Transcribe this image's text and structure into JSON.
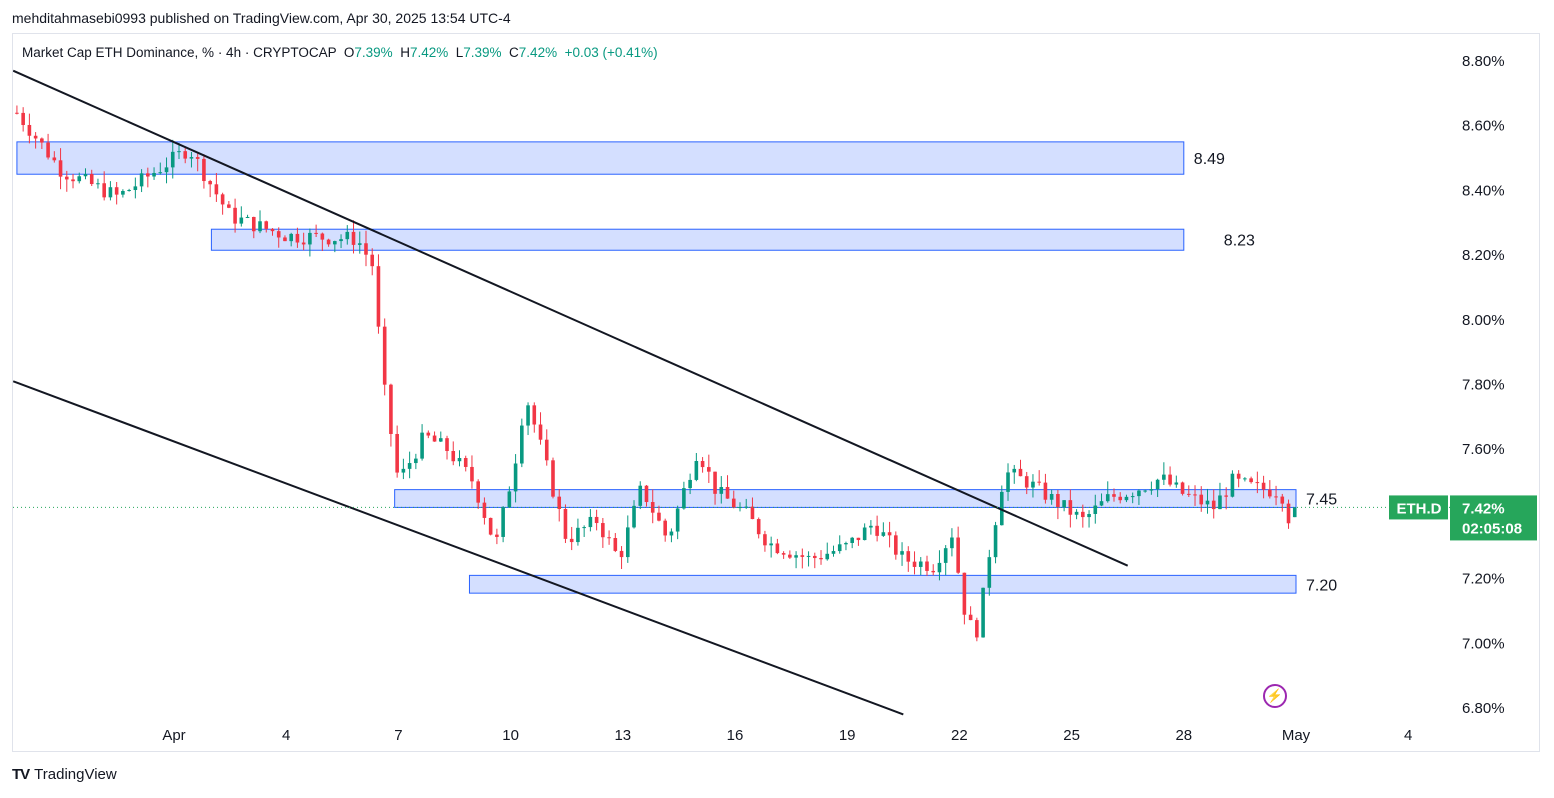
{
  "header": {
    "publisher_line": "mehditahmasebi0993 published on TradingView.com, Apr 30, 2025 13:54 UTC-4"
  },
  "legend": {
    "symbol_text": "Market Cap ETH Dominance, % · 4h · CRYPTOCAP",
    "o_label": "O",
    "o_value": "7.39%",
    "h_label": "H",
    "h_value": "7.42%",
    "l_label": "L",
    "l_value": "7.39%",
    "c_label": "C",
    "c_value": "7.42%",
    "change": "+0.03 (+0.41%)"
  },
  "footer": {
    "brand": "TradingView",
    "logo_text": "TV"
  },
  "colors": {
    "up": "#089981",
    "down": "#f23645",
    "zone_fill": "#cdd9ff",
    "zone_border": "#2962ff",
    "line": "#131722",
    "price_tag": "#26a65b"
  },
  "chart_data": {
    "type": "candlestick",
    "y_axis": {
      "min": 6.76,
      "max": 8.86,
      "ticks": [
        "8.80%",
        "8.60%",
        "8.40%",
        "8.20%",
        "8.00%",
        "7.80%",
        "7.60%",
        "7.40%",
        "7.20%",
        "7.00%",
        "6.80%"
      ],
      "tick_values": [
        8.8,
        8.6,
        8.4,
        8.2,
        8.0,
        7.8,
        7.6,
        7.4,
        7.2,
        7.0,
        6.8
      ]
    },
    "x_axis": {
      "labels": [
        "Apr",
        "4",
        "7",
        "10",
        "13",
        "16",
        "19",
        "22",
        "25",
        "28",
        "May",
        "4"
      ],
      "label_days": [
        0,
        3,
        6,
        9,
        12,
        15,
        18,
        21,
        24,
        27,
        30,
        33
      ]
    },
    "last_price_tag": {
      "symbol": "ETH.D",
      "price": "7.42%",
      "countdown": "02:05:08",
      "value": 7.42
    },
    "zones": [
      {
        "label": "8.49",
        "top": 8.55,
        "bottom": 8.45,
        "start_day": -4.2,
        "end_day": 27.0
      },
      {
        "label": "8.23",
        "top": 8.28,
        "bottom": 8.215,
        "start_day": 1.0,
        "end_day": 27.0
      },
      {
        "label": "7.45",
        "top": 7.475,
        "bottom": 7.42,
        "start_day": 5.9,
        "end_day": 30.0
      },
      {
        "label": "7.20",
        "top": 7.21,
        "bottom": 7.155,
        "start_day": 7.9,
        "end_day": 30.0
      }
    ],
    "trendlines": [
      {
        "from": {
          "day": -4.3,
          "value": 8.77
        },
        "to": {
          "day": 25.5,
          "value": 7.24
        }
      },
      {
        "from": {
          "day": -4.3,
          "value": 7.81
        },
        "to": {
          "day": 19.5,
          "value": 6.78
        }
      }
    ],
    "key_closes": [
      {
        "day": -4.2,
        "value": 8.64
      },
      {
        "day": -3.0,
        "value": 8.46
      },
      {
        "day": -1.5,
        "value": 8.38
      },
      {
        "day": 0.4,
        "value": 8.53
      },
      {
        "day": 1.5,
        "value": 8.32
      },
      {
        "day": 3.0,
        "value": 8.26
      },
      {
        "day": 4.9,
        "value": 8.25
      },
      {
        "day": 5.3,
        "value": 8.17
      },
      {
        "day": 5.6,
        "value": 7.8
      },
      {
        "day": 6.0,
        "value": 7.5
      },
      {
        "day": 6.7,
        "value": 7.64
      },
      {
        "day": 7.3,
        "value": 7.6
      },
      {
        "day": 8.0,
        "value": 7.5
      },
      {
        "day": 8.6,
        "value": 7.3
      },
      {
        "day": 9.1,
        "value": 7.55
      },
      {
        "day": 9.4,
        "value": 7.77
      },
      {
        "day": 10.0,
        "value": 7.53
      },
      {
        "day": 10.5,
        "value": 7.32
      },
      {
        "day": 11.3,
        "value": 7.38
      },
      {
        "day": 11.9,
        "value": 7.26
      },
      {
        "day": 12.5,
        "value": 7.48
      },
      {
        "day": 13.2,
        "value": 7.32
      },
      {
        "day": 14.0,
        "value": 7.6
      },
      {
        "day": 14.5,
        "value": 7.47
      },
      {
        "day": 15.3,
        "value": 7.4
      },
      {
        "day": 15.9,
        "value": 7.31
      },
      {
        "day": 17.0,
        "value": 7.26
      },
      {
        "day": 18.0,
        "value": 7.3
      },
      {
        "day": 18.7,
        "value": 7.37
      },
      {
        "day": 19.5,
        "value": 7.26
      },
      {
        "day": 20.3,
        "value": 7.24
      },
      {
        "day": 20.8,
        "value": 7.34
      },
      {
        "day": 21.2,
        "value": 7.06
      },
      {
        "day": 21.5,
        "value": 7.04
      },
      {
        "day": 21.8,
        "value": 7.28
      },
      {
        "day": 22.2,
        "value": 7.53
      },
      {
        "day": 22.8,
        "value": 7.5
      },
      {
        "day": 23.8,
        "value": 7.42
      },
      {
        "day": 24.3,
        "value": 7.38
      },
      {
        "day": 25.0,
        "value": 7.45
      },
      {
        "day": 25.6,
        "value": 7.47
      },
      {
        "day": 26.4,
        "value": 7.51
      },
      {
        "day": 27.0,
        "value": 7.46
      },
      {
        "day": 27.8,
        "value": 7.42
      },
      {
        "day": 28.3,
        "value": 7.5
      },
      {
        "day": 28.9,
        "value": 7.48
      },
      {
        "day": 29.6,
        "value": 7.47
      },
      {
        "day": 29.8,
        "value": 7.39
      },
      {
        "day": 30.0,
        "value": 7.42
      }
    ]
  }
}
